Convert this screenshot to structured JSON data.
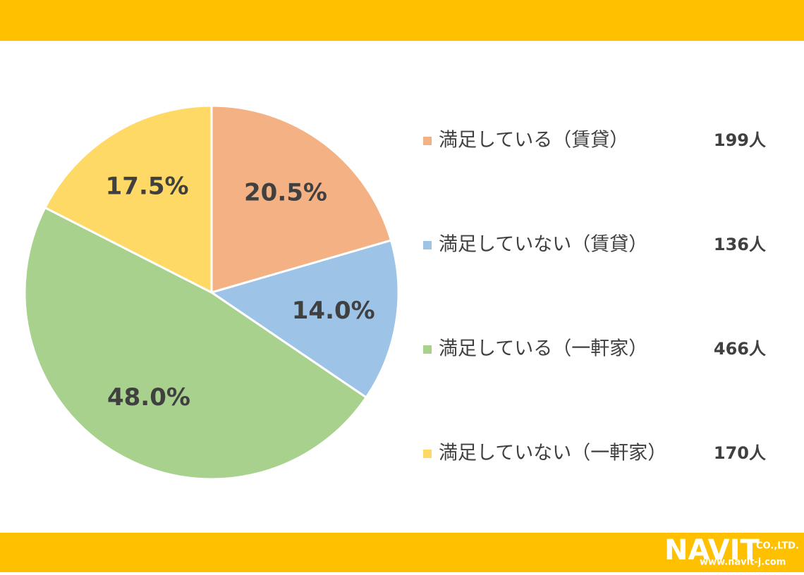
{
  "chart_data": {
    "type": "pie",
    "categories": [
      "満足している（賃貸）",
      "満足していない（賃貸）",
      "満足している（一軒家）",
      "満足していない（一軒家）"
    ],
    "values": [
      20.5,
      14.0,
      48.0,
      17.5
    ],
    "value_labels": [
      "20.5%",
      "14.0%",
      "48.0%",
      "17.5%"
    ],
    "count_labels": [
      "199人",
      "136人",
      "466人",
      "170人"
    ],
    "colors": [
      "#f4b183",
      "#9dc3e6",
      "#a9d18e",
      "#ffd966"
    ],
    "legend": "right"
  },
  "footer": {
    "logo": "NAVIT",
    "company_suffix": "CO.,LTD.",
    "url": "www.navit-j.com"
  }
}
